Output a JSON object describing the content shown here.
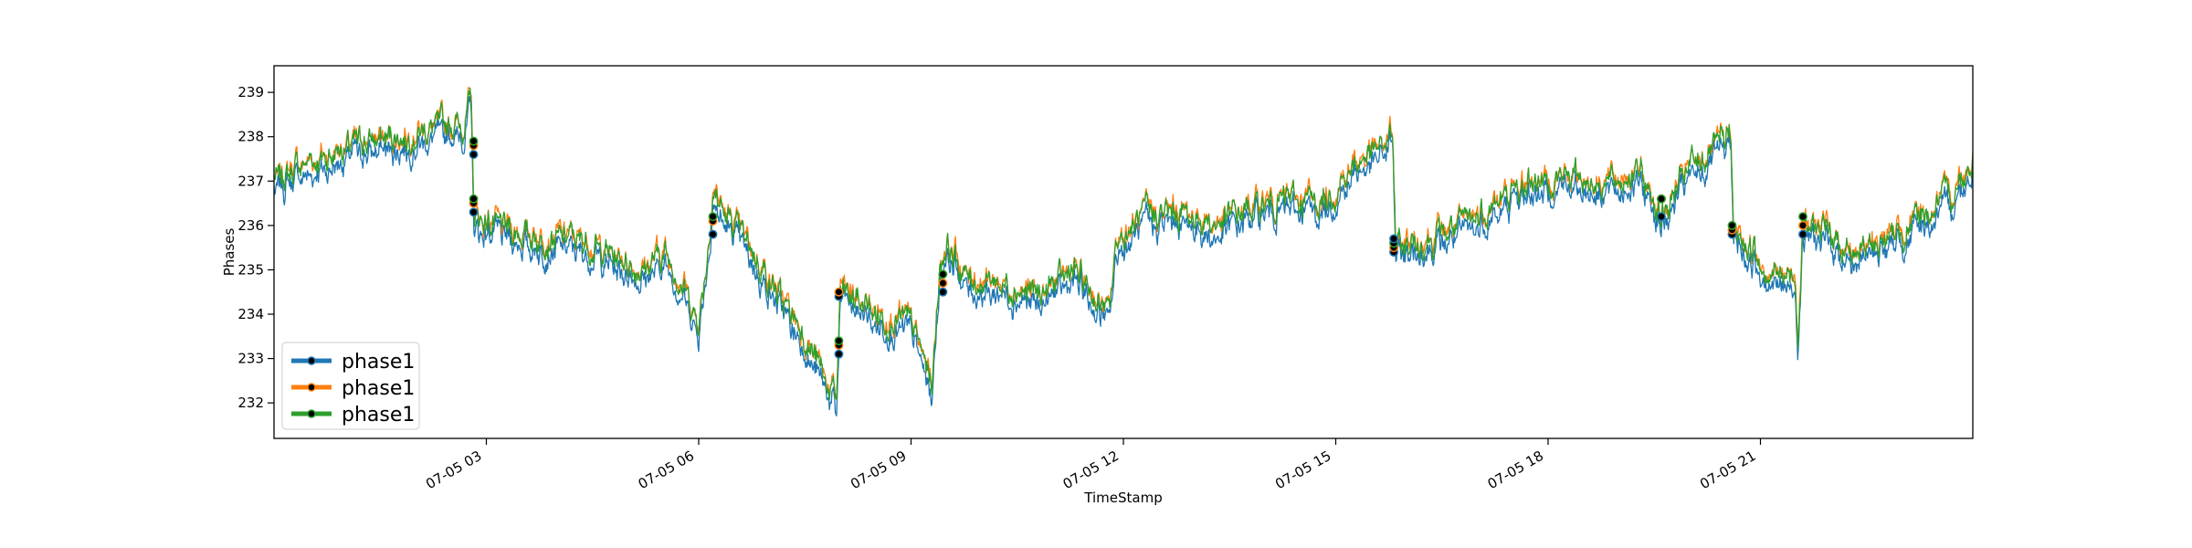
{
  "chart_data": {
    "type": "line",
    "title": "",
    "xlabel": "TimeStamp",
    "ylabel": "Phases",
    "x_range": [
      "07-05 00:00",
      "07-05 24:00"
    ],
    "ylim": [
      231.2,
      239.6
    ],
    "y_ticks": [
      232,
      233,
      234,
      235,
      236,
      237,
      238,
      239
    ],
    "x_ticks": [
      {
        "hour": 3,
        "label": "07-05 03"
      },
      {
        "hour": 6,
        "label": "07-05 06"
      },
      {
        "hour": 9,
        "label": "07-05 09"
      },
      {
        "hour": 12,
        "label": "07-05 12"
      },
      {
        "hour": 15,
        "label": "07-05 15"
      },
      {
        "hour": 18,
        "label": "07-05 18"
      },
      {
        "hour": 21,
        "label": "07-05 21"
      }
    ],
    "grid": false,
    "legend": {
      "placement": "lower-left"
    },
    "series": [
      {
        "name": "phase1",
        "color": "#1f77b4",
        "offset": -0.25
      },
      {
        "name": "phase1",
        "color": "#ff7f0e",
        "offset": 0.05
      },
      {
        "name": "phase1",
        "color": "#2ca02c",
        "offset": 0.0
      }
    ],
    "base_profile": {
      "hours": [
        0,
        0.3,
        0.8,
        1.3,
        1.8,
        2.3,
        2.7,
        2.79,
        2.82,
        3.3,
        3.8,
        4.3,
        4.8,
        5.2,
        5.5,
        5.8,
        6.0,
        6.15,
        6.2,
        6.35,
        6.5,
        6.8,
        7.1,
        7.5,
        7.8,
        7.95,
        8.0,
        8.5,
        9.0,
        9.3,
        9.4,
        9.5,
        9.8,
        10.3,
        10.8,
        11.3,
        11.8,
        11.9,
        12.3,
        12.8,
        13.3,
        13.8,
        14.3,
        14.8,
        15.3,
        15.7,
        15.8,
        15.85,
        16.3,
        16.8,
        17.3,
        17.8,
        18.3,
        18.8,
        19.3,
        19.6,
        20.0,
        20.5,
        20.58,
        20.62,
        20.9,
        21.2,
        21.5,
        21.53,
        21.6,
        22.0,
        22.3,
        22.8,
        23.3,
        23.7,
        24.0
      ],
      "values": [
        237.0,
        237.3,
        237.6,
        237.9,
        238.0,
        238.2,
        238.3,
        238.9,
        236.2,
        235.9,
        235.7,
        235.7,
        235.3,
        235.0,
        235.4,
        234.6,
        233.8,
        235.7,
        236.9,
        236.3,
        236.0,
        235.3,
        234.5,
        233.5,
        232.5,
        232.0,
        234.6,
        234.0,
        233.8,
        232.4,
        235.0,
        235.6,
        234.8,
        234.7,
        234.4,
        235.0,
        234.0,
        235.6,
        236.2,
        236.3,
        236.0,
        236.4,
        236.6,
        236.5,
        237.4,
        237.8,
        238.1,
        235.5,
        235.7,
        236.0,
        236.5,
        237.0,
        237.1,
        237.0,
        237.2,
        236.2,
        237.3,
        237.9,
        238.3,
        235.8,
        235.4,
        234.9,
        234.8,
        233.5,
        236.0,
        235.8,
        235.4,
        235.7,
        236.2,
        236.7,
        237.5
      ]
    },
    "event_markers": [
      {
        "hour": 2.82,
        "values": [
          236.3,
          236.5,
          236.6,
          237.6,
          237.8,
          237.9
        ]
      },
      {
        "hour": 6.2,
        "values": [
          235.8,
          236.1,
          236.2
        ]
      },
      {
        "hour": 7.98,
        "values": [
          233.1,
          233.3,
          233.4,
          234.4,
          234.5
        ]
      },
      {
        "hour": 9.45,
        "values": [
          234.5,
          234.7,
          234.9
        ]
      },
      {
        "hour": 15.82,
        "values": [
          235.4,
          235.5,
          235.6,
          235.7
        ]
      },
      {
        "hour": 19.6,
        "values": [
          236.2,
          236.6,
          236.6
        ]
      },
      {
        "hour": 20.6,
        "values": [
          235.8,
          235.9,
          236.0
        ]
      },
      {
        "hour": 21.6,
        "values": [
          235.8,
          236.0,
          236.2
        ]
      }
    ]
  }
}
